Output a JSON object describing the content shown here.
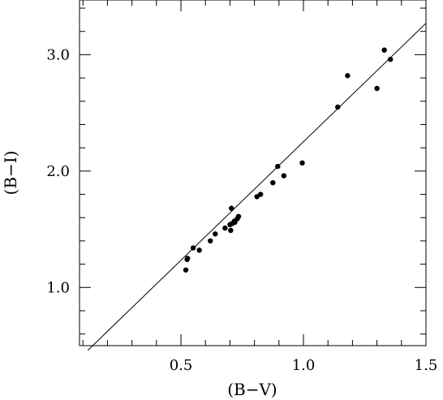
{
  "chart_data": {
    "type": "scatter",
    "title": "",
    "xlabel": "(B−V)",
    "ylabel": "(B−I)",
    "xlim": [
      0.086,
      1.5
    ],
    "ylim": [
      0.5,
      3.47
    ],
    "xticks": [
      0.5,
      1.0,
      1.5
    ],
    "xtick_labels": [
      "0.5",
      "1.0",
      "1.5"
    ],
    "yticks": [
      1.0,
      2.0,
      3.0
    ],
    "ytick_labels": [
      "1.0",
      "2.0",
      "3.0"
    ],
    "x_minor_step": 0.1,
    "y_minor_step": 0.2,
    "grid": false,
    "legend": "none",
    "series": [
      {
        "kind": "points",
        "x": [
          0.52,
          0.525,
          0.527,
          0.55,
          0.575,
          0.62,
          0.64,
          0.68,
          0.7,
          0.703,
          0.706,
          0.71,
          0.718,
          0.72,
          0.73,
          0.735,
          0.81,
          0.825,
          0.875,
          0.895,
          0.92,
          0.995,
          1.14,
          1.18,
          1.3,
          1.33,
          1.355
        ],
        "y": [
          1.15,
          1.24,
          1.25,
          1.34,
          1.32,
          1.4,
          1.46,
          1.51,
          1.54,
          1.49,
          1.68,
          1.55,
          1.57,
          1.56,
          1.59,
          1.61,
          1.78,
          1.8,
          1.9,
          2.04,
          1.96,
          2.07,
          2.55,
          2.82,
          2.71,
          3.04,
          2.96
        ]
      },
      {
        "kind": "line",
        "x": [
          0.12,
          1.5
        ],
        "y": [
          0.46,
          3.27
        ]
      }
    ]
  }
}
